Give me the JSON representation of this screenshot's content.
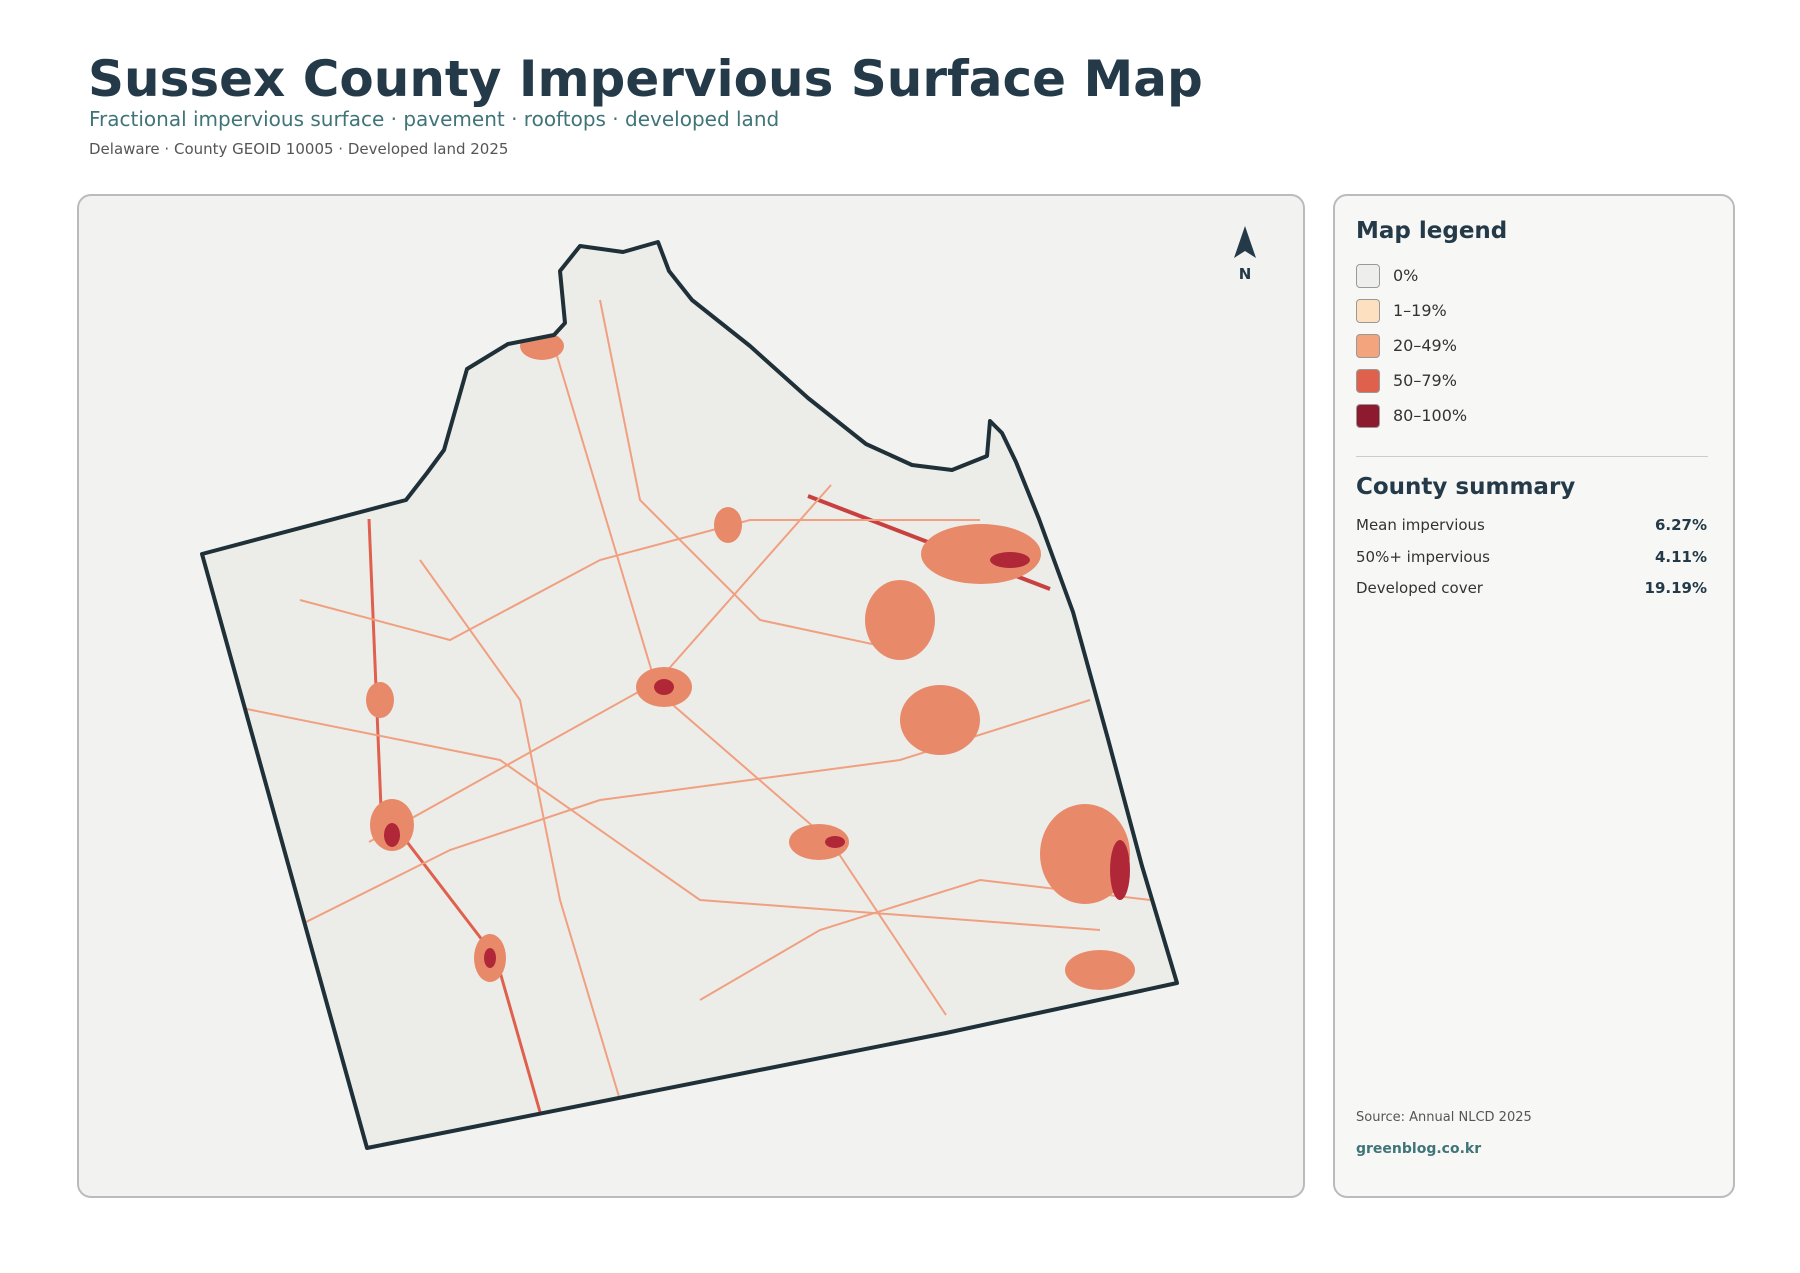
{
  "header": {
    "title": "Sussex County Impervious Surface Map",
    "subtitle": "Fractional impervious surface · pavement · rooftops · developed land",
    "meta": "Delaware · County GEOID 10005 · Developed land 2025"
  },
  "map": {
    "north": "N"
  },
  "legend": {
    "title": "Map legend",
    "items": [
      {
        "label": "0%",
        "color": "#eeeeec"
      },
      {
        "label": "1–19%",
        "color": "#fde0c0"
      },
      {
        "label": "20–49%",
        "color": "#f4a47c"
      },
      {
        "label": "50–79%",
        "color": "#e0604e"
      },
      {
        "label": "80–100%",
        "color": "#8e1a30"
      }
    ]
  },
  "summary": {
    "title": "County summary",
    "rows": [
      {
        "label": "Mean impervious",
        "value": "6.27%"
      },
      {
        "label": "50%+ impervious",
        "value": "4.11%"
      },
      {
        "label": "Developed cover",
        "value": "19.19%"
      }
    ]
  },
  "footer": {
    "source": "Source: Annual NLCD 2025",
    "site": "greenblog.co.kr"
  }
}
